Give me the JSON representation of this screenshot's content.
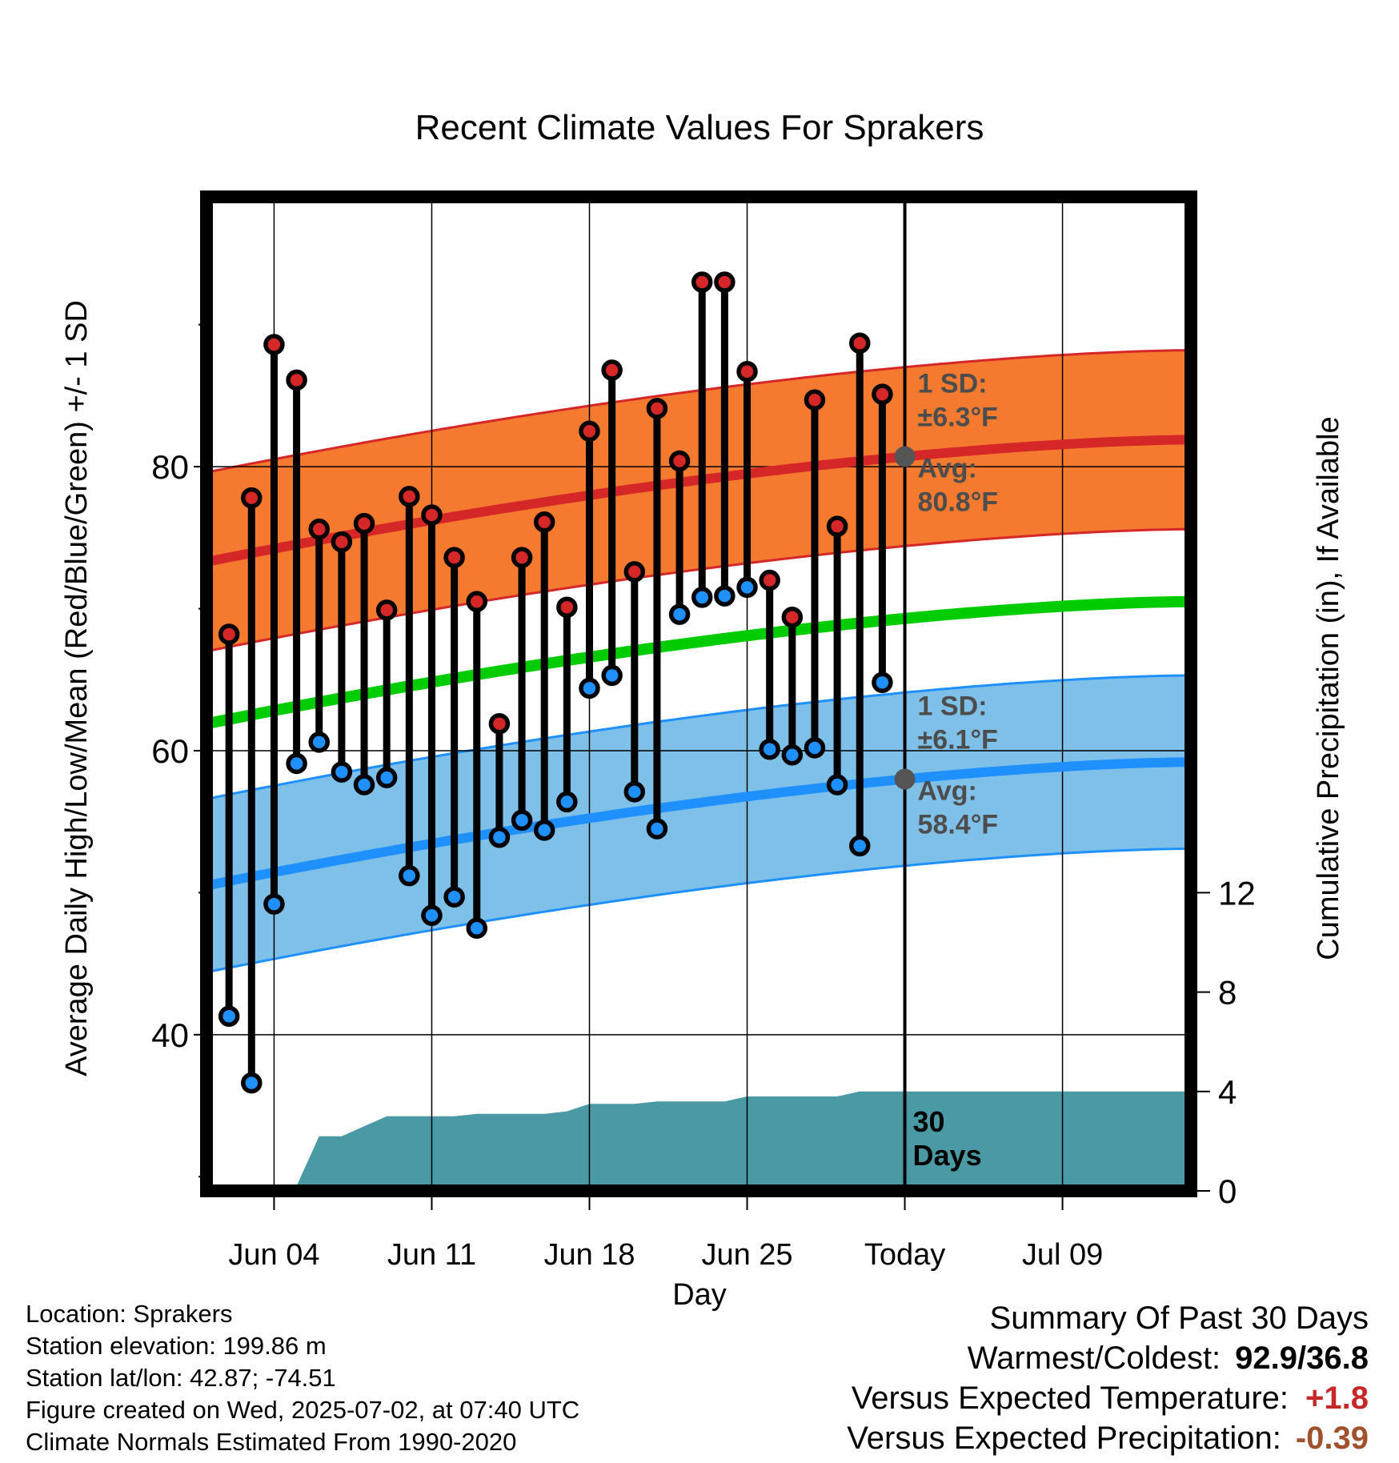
{
  "chart_data": {
    "type": "line",
    "title": "Recent Climate Values For Sprakers",
    "xlabel": "Day",
    "ylabel": "Average Daily High/Low/Mean (Red/Blue/Green) +/- 1 SD",
    "y2label": "Cumulative Precipitation (in), If Available",
    "ylim": [
      29,
      99
    ],
    "y2lim": [
      0,
      40
    ],
    "x_range_days": [
      0,
      43.7
    ],
    "x_ticks": [
      {
        "day": 3,
        "label": "Jun 04"
      },
      {
        "day": 10,
        "label": "Jun 11"
      },
      {
        "day": 17,
        "label": "Jun 18"
      },
      {
        "day": 24,
        "label": "Jun 25"
      },
      {
        "day": 31,
        "label": "Today"
      },
      {
        "day": 38,
        "label": "Jul 09"
      }
    ],
    "y_ticks": [
      "40",
      "60",
      "80"
    ],
    "y2_ticks": [
      "0",
      "4",
      "8",
      "12"
    ],
    "grid": true,
    "colors": {
      "high": "#d62728",
      "low": "#1e90ff",
      "mean": "#00cc00",
      "high_band": "#f47a30",
      "low_band": "#7fc0e8",
      "precip": "#4a9aa5"
    },
    "daily_high": [
      68.2,
      77.8,
      88.6,
      86.1,
      75.6,
      74.7,
      76.0,
      69.9,
      77.9,
      76.6,
      73.6,
      70.5,
      61.9,
      73.6,
      76.1,
      70.1,
      82.5,
      86.8,
      72.6,
      84.1,
      80.4,
      93.0,
      93.0,
      86.7,
      72.0,
      69.4,
      84.7,
      75.8,
      88.7,
      85.1
    ],
    "daily_low": [
      41.3,
      36.6,
      49.2,
      59.1,
      60.6,
      58.5,
      57.6,
      58.1,
      51.2,
      48.4,
      49.7,
      47.5,
      53.9,
      55.1,
      54.4,
      56.4,
      64.4,
      65.3,
      57.1,
      54.5,
      69.6,
      70.8,
      70.9,
      71.5,
      60.1,
      59.7,
      60.2,
      57.6,
      53.3,
      64.8
    ],
    "normal_high": {
      "start": 73.3,
      "end": 81.9
    },
    "normal_low": {
      "start": 50.5,
      "end": 59.2
    },
    "normal_mean": {
      "start": 61.9,
      "end": 70.5
    },
    "sd_high": 6.3,
    "sd_low": 6.1,
    "cumulative_precip": [
      0,
      0,
      0,
      0,
      0.2,
      2.2,
      2.2,
      2.6,
      3.0,
      3.0,
      3.0,
      3.0,
      3.1,
      3.1,
      3.1,
      3.1,
      3.2,
      3.5,
      3.5,
      3.5,
      3.6,
      3.6,
      3.6,
      3.6,
      3.8,
      3.8,
      3.8,
      3.8,
      3.8,
      4.0,
      4.0,
      4.0
    ]
  },
  "annotations": {
    "high_sd_label": "1 SD:",
    "high_sd_value": "±6.3°F",
    "high_avg_label": "Avg:",
    "high_avg_value": "80.8°F",
    "low_sd_label": "1 SD:",
    "low_sd_value": "±6.1°F",
    "low_avg_label": "Avg:",
    "low_avg_value": "58.4°F",
    "days_line1": "30",
    "days_line2": "Days"
  },
  "station": {
    "location": "Location: Sprakers",
    "elevation": "Station elevation: 199.86 m",
    "latlon": "Station lat/lon: 42.87; -74.51",
    "created": "Figure created on Wed, 2025-07-02, at 07:40 UTC",
    "normals": "Climate Normals Estimated From 1990-2020"
  },
  "summary": {
    "heading": "Summary Of Past 30 Days",
    "warm_cold_label": "Warmest/Coldest:",
    "warm_cold_value": "92.9/36.8",
    "temp_label": "Versus Expected Temperature:",
    "temp_value": "+1.8",
    "temp_color": "#c62828",
    "precip_label": "Versus Expected Precipitation:",
    "precip_value": "-0.39",
    "precip_color": "#a0522d"
  }
}
